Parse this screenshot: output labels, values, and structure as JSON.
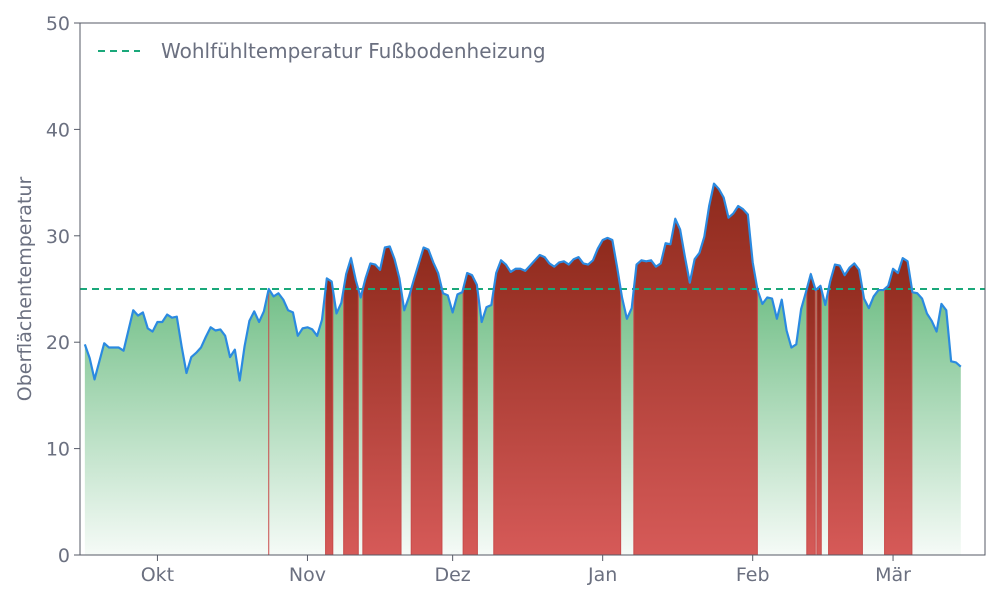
{
  "chart_data": {
    "type": "area",
    "title": "",
    "xlabel": "",
    "ylabel": "Oberflächentemperatur",
    "ylim": [
      0,
      50
    ],
    "yticks": [
      0,
      10,
      20,
      30,
      40,
      50
    ],
    "xlim": [
      "2023-09-15",
      "2024-03-20"
    ],
    "xticks": [
      {
        "date": "2023-10-01",
        "label": "Okt"
      },
      {
        "date": "2023-11-01",
        "label": "Nov"
      },
      {
        "date": "2023-12-01",
        "label": "Dez"
      },
      {
        "date": "2024-01-01",
        "label": "Jan"
      },
      {
        "date": "2024-02-01",
        "label": "Feb"
      },
      {
        "date": "2024-03-01",
        "label": "Mär"
      }
    ],
    "grid": false,
    "legend": {
      "position": "top-left",
      "entries": [
        "Wohlfühltemperatur Fußbodenheizung"
      ]
    },
    "threshold": {
      "name": "Wohlfühltemperatur Fußbodenheizung",
      "value": 25,
      "color": "#1aa87a"
    },
    "colors": {
      "line": "#2b8ae0",
      "above_fill": "#cc4a46",
      "below_fill": "#5bb56a"
    },
    "series": [
      {
        "start_date": "2023-09-16",
        "values": [
          19.8,
          18.5,
          16.5,
          18.2,
          19.9,
          19.5,
          19.5,
          19.5,
          19.2,
          21.1,
          23.0,
          22.5,
          22.8,
          21.3,
          21.0,
          21.9,
          21.9,
          22.6,
          22.3,
          22.4,
          19.6,
          17.1,
          18.6,
          19.0,
          19.5,
          20.5,
          21.4,
          21.1,
          21.2,
          20.6,
          18.6,
          19.3,
          16.4,
          19.6,
          22.0,
          22.9,
          21.9,
          22.9,
          25.0,
          24.3,
          24.6,
          24.0,
          23.0,
          22.8,
          20.6,
          21.3,
          21.4,
          21.2,
          20.6,
          22.1,
          26.0,
          25.7,
          22.7,
          23.7,
          26.4,
          27.9,
          25.8,
          24.2,
          26.0,
          27.4,
          27.3,
          26.8,
          28.9,
          29.0,
          27.8,
          26.0,
          23.0,
          24.3,
          25.9,
          27.4,
          28.9,
          28.7,
          27.5,
          26.5,
          24.6,
          24.4,
          22.8,
          24.5,
          24.7,
          26.5,
          26.3,
          25.4,
          21.9,
          23.3,
          23.5,
          26.5,
          27.7,
          27.3,
          26.6,
          26.9,
          26.9,
          26.7,
          27.2,
          27.7,
          28.2,
          28.0,
          27.4,
          27.1,
          27.5,
          27.6,
          27.3,
          27.8,
          28.0,
          27.4,
          27.3,
          27.7,
          28.8,
          29.6,
          29.8,
          29.6,
          27.0,
          24.2,
          22.2,
          23.2,
          27.3,
          27.7,
          27.6,
          27.7,
          27.1,
          27.4,
          29.3,
          29.2,
          31.6,
          30.6,
          28.0,
          25.6,
          27.8,
          28.4,
          29.9,
          32.8,
          34.9,
          34.4,
          33.6,
          31.7,
          32.1,
          32.8,
          32.5,
          32.0,
          27.5,
          24.9,
          23.6,
          24.2,
          24.1,
          22.2,
          24.0,
          21.1,
          19.5,
          19.8,
          23.1,
          24.7,
          26.4,
          24.9,
          25.3,
          23.5,
          25.7,
          27.3,
          27.2,
          26.3,
          27.0,
          27.4,
          26.8,
          24.1,
          23.2,
          24.3,
          24.9,
          24.9,
          25.3,
          26.9,
          26.5,
          27.9,
          27.6,
          24.7,
          24.6,
          24.1,
          22.7,
          22.0,
          21.0,
          23.6,
          23.0,
          18.2,
          18.1,
          17.7
        ]
      }
    ]
  }
}
